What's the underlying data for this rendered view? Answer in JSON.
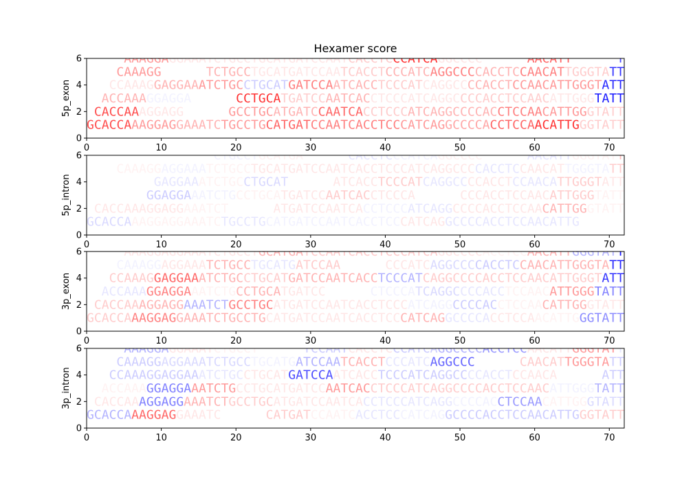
{
  "chart_data": {
    "type": "sequence-logo",
    "title": "Hexamer score",
    "panels_text": [
      "5p_exon",
      "5p_intron",
      "3p_exon",
      "3p_intron"
    ],
    "colors": {
      "positive": "#ff0000",
      "negative": "#0000ff"
    },
    "xlim": [
      0,
      72
    ],
    "ylim": [
      0,
      6
    ],
    "xticks": [
      "0",
      "10",
      "20",
      "30",
      "40",
      "50",
      "60",
      "70"
    ],
    "yticks": [
      "0",
      "2",
      "4",
      "6"
    ],
    "sequence": "GCACCAAAGGAGGAAATCTGCCTGCATGATCCAATCACCTCCCATCAGGCCCCACCTCCAACATTGGGTATT",
    "rows": [
      {
        "offset": 0,
        "y": 1
      },
      {
        "offset": 1,
        "y": 2
      },
      {
        "offset": 2,
        "y": 3
      },
      {
        "offset": 3,
        "y": 4
      },
      {
        "offset": 4,
        "y": 5
      },
      {
        "offset": 5,
        "y": 6
      }
    ],
    "panels": [
      {
        "label": "5p_exon",
        "scores": [
          [
            0.7,
            0.4,
            0.3,
            0.4,
            0.6,
            0.5,
            0.5,
            0.4,
            0.35,
            0.6,
            0.8,
            0.2
          ],
          [
            0.7,
            0.1,
            0.0,
            0.4,
            0.3,
            0.6,
            0.2,
            0.3,
            0.3,
            0.5,
            0.4,
            0.2
          ],
          [
            0.3,
            -0.05,
            0.0,
            0.8,
            0.2,
            0.3,
            0.1,
            0.1,
            0.2,
            0.2,
            0.1,
            -0.9
          ],
          [
            0.1,
            0.3,
            0.4,
            -0.2,
            0.5,
            0.3,
            0.2,
            0.1,
            0.3,
            0.4,
            0.4,
            -0.85
          ],
          [
            0.4,
            0.0,
            0.3,
            0.1,
            0.1,
            0.2,
            0.3,
            0.5,
            0.3,
            0.5,
            0.2,
            -0.8
          ],
          [
            0.4,
            0.1,
            0.1,
            0.1,
            0.1,
            0.2,
            0.8,
            0.1,
            0.0,
            0.6,
            0.0,
            -0.7
          ]
        ]
      },
      {
        "label": "5p_intron",
        "scores": [
          [
            -0.15,
            0.05,
            0.05,
            -0.1,
            -0.05,
            -0.05,
            -0.05,
            0.1,
            -0.1,
            -0.1,
            -0.1,
            0.0
          ],
          [
            0.1,
            0.1,
            0.05,
            0.0,
            0.1,
            0.1,
            -0.05,
            -0.1,
            0.1,
            0.1,
            0.3,
            0.05
          ],
          [
            0.0,
            -0.2,
            -0.05,
            0.05,
            0.1,
            0.2,
            0.1,
            0.0,
            0.1,
            0.1,
            0.2,
            0.05
          ],
          [
            0.0,
            -0.1,
            0.05,
            -0.15,
            0.0,
            0.1,
            0.2,
            -0.1,
            0.1,
            -0.1,
            0.2,
            0.1
          ],
          [
            0.05,
            -0.05,
            0.05,
            0.1,
            0.1,
            0.1,
            0.1,
            0.1,
            -0.1,
            0.1,
            -0.05,
            0.2
          ],
          [
            0.0,
            0.0,
            -0.05,
            0.05,
            0.0,
            -0.1,
            -0.05,
            0.05,
            0.0,
            -0.1,
            0.05,
            0.25
          ]
        ]
      },
      {
        "label": "3p_exon",
        "scores": [
          [
            0.2,
            0.5,
            0.3,
            0.3,
            0.1,
            0.1,
            0.1,
            0.3,
            -0.1,
            0.1,
            0.05,
            -0.45
          ],
          [
            0.2,
            0.3,
            -0.3,
            0.5,
            0.1,
            0.1,
            0.1,
            -0.05,
            -0.2,
            0.05,
            0.3,
            0.1
          ],
          [
            -0.1,
            0.5,
            0.05,
            0.3,
            0.1,
            0.0,
            -0.05,
            -0.15,
            -0.1,
            0.05,
            0.4,
            -0.5
          ],
          [
            0.2,
            0.6,
            0.3,
            0.2,
            0.3,
            0.3,
            -0.3,
            0.2,
            0.2,
            0.2,
            0.2,
            -0.8
          ],
          [
            -0.05,
            0.1,
            0.3,
            -0.1,
            0.2,
            0.0,
            0.1,
            -0.15,
            -0.2,
            0.3,
            0.3,
            -0.85
          ],
          [
            0.1,
            0.1,
            0.1,
            0.3,
            0.2,
            0.2,
            0.2,
            0.1,
            0.05,
            0.3,
            -0.3,
            -0.9
          ]
        ]
      },
      {
        "label": "3p_intron",
        "scores": [
          [
            -0.3,
            0.6,
            0.1,
            0.0,
            0.2,
            0.05,
            -0.1,
            -0.05,
            -0.2,
            -0.2,
            -0.2,
            0.2
          ],
          [
            0.1,
            -0.5,
            0.3,
            0.2,
            0.1,
            0.1,
            -0.1,
            -0.1,
            -0.05,
            -0.4,
            0.05,
            -0.15
          ],
          [
            0.05,
            -0.5,
            0.4,
            0.1,
            0.1,
            0.4,
            0.2,
            0.2,
            0.2,
            0.2,
            -0.05,
            -0.3
          ],
          [
            -0.2,
            -0.2,
            -0.1,
            0.1,
            -0.7,
            0.1,
            -0.2,
            -0.2,
            -0.1,
            0.1,
            0.0,
            -0.2
          ],
          [
            -0.2,
            -0.15,
            -0.15,
            -0.05,
            -0.3,
            0.3,
            -0.1,
            -0.6,
            0.0,
            0.2,
            0.4,
            -0.2
          ],
          [
            -0.3,
            0.1,
            0.05,
            0.0,
            -0.2,
            0.1,
            -0.2,
            -0.3,
            -0.4,
            0.1,
            0.4,
            -0.1
          ]
        ]
      }
    ]
  }
}
